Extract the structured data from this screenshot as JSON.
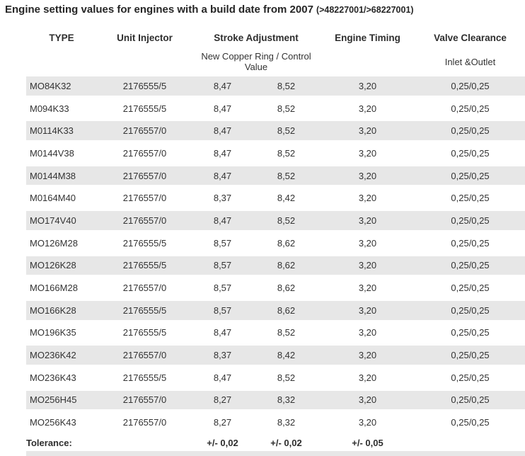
{
  "page": {
    "title_main": "Engine setting values for engines with a build date from 2007",
    "title_suffix": "(>48227001/>68227001)"
  },
  "colors": {
    "row_stripe": "#e7e7e7",
    "text": "#333333",
    "title_text": "#262626"
  },
  "table": {
    "headers": {
      "type": "TYPE",
      "unit_injector": "Unit Injector",
      "stroke_adjustment": "Stroke Adjustment",
      "engine_timing": "Engine Timing",
      "valve_clearance": "Valve Clearance"
    },
    "subheaders": {
      "stroke_adjustment": "New Copper Ring / Control Value",
      "valve_clearance": "Inlet &Outlet"
    },
    "rows": [
      {
        "type": "MO84K32",
        "injector": "2176555/5",
        "stroke_new": "8,47",
        "stroke_ctl": "8,52",
        "timing": "3,20",
        "valve": "0,25/0,25"
      },
      {
        "type": "M094K33",
        "injector": "2176555/5",
        "stroke_new": "8,47",
        "stroke_ctl": "8,52",
        "timing": "3,20",
        "valve": "0,25/0,25"
      },
      {
        "type": "M0114K33",
        "injector": "2176557/0",
        "stroke_new": "8,47",
        "stroke_ctl": "8,52",
        "timing": "3,20",
        "valve": "0,25/0,25"
      },
      {
        "type": "M0144V38",
        "injector": "2176557/0",
        "stroke_new": "8,47",
        "stroke_ctl": "8,52",
        "timing": "3,20",
        "valve": "0,25/0,25"
      },
      {
        "type": "M0144M38",
        "injector": "2176557/0",
        "stroke_new": "8,47",
        "stroke_ctl": "8,52",
        "timing": "3,20",
        "valve": "0,25/0,25"
      },
      {
        "type": "M0164M40",
        "injector": "2176557/0",
        "stroke_new": "8,37",
        "stroke_ctl": "8,42",
        "timing": "3,20",
        "valve": "0,25/0,25"
      },
      {
        "type": "MO174V40",
        "injector": "2176557/0",
        "stroke_new": "8,47",
        "stroke_ctl": "8,52",
        "timing": "3,20",
        "valve": "0,25/0,25"
      },
      {
        "type": "MO126M28",
        "injector": "2176555/5",
        "stroke_new": "8,57",
        "stroke_ctl": "8,62",
        "timing": "3,20",
        "valve": "0,25/0,25"
      },
      {
        "type": "MO126K28",
        "injector": "2176555/5",
        "stroke_new": "8,57",
        "stroke_ctl": "8,62",
        "timing": "3,20",
        "valve": "0,25/0,25"
      },
      {
        "type": "MO166M28",
        "injector": "2176557/0",
        "stroke_new": "8,57",
        "stroke_ctl": "8,62",
        "timing": "3,20",
        "valve": "0,25/0,25"
      },
      {
        "type": "MO166K28",
        "injector": "2176555/5",
        "stroke_new": "8,57",
        "stroke_ctl": "8,62",
        "timing": "3,20",
        "valve": "0,25/0,25"
      },
      {
        "type": "MO196K35",
        "injector": "2176555/5",
        "stroke_new": "8,47",
        "stroke_ctl": "8,52",
        "timing": "3,20",
        "valve": "0,25/0,25"
      },
      {
        "type": "MO236K42",
        "injector": "2176557/0",
        "stroke_new": "8,37",
        "stroke_ctl": "8,42",
        "timing": "3,20",
        "valve": "0,25/0,25"
      },
      {
        "type": "MO236K43",
        "injector": "2176555/5",
        "stroke_new": "8,47",
        "stroke_ctl": "8,52",
        "timing": "3,20",
        "valve": "0,25/0,25"
      },
      {
        "type": "MO256H45",
        "injector": "2176557/0",
        "stroke_new": "8,27",
        "stroke_ctl": "8,32",
        "timing": "3,20",
        "valve": "0,25/0,25"
      },
      {
        "type": "MO256K43",
        "injector": "2176557/0",
        "stroke_new": "8,27",
        "stroke_ctl": "8,32",
        "timing": "3,20",
        "valve": "0,25/0,25"
      }
    ],
    "tolerance": {
      "label": "Tolerance:",
      "stroke_new": "+/- 0,02",
      "stroke_ctl": "+/- 0,02",
      "timing": "+/- 0,05"
    }
  }
}
